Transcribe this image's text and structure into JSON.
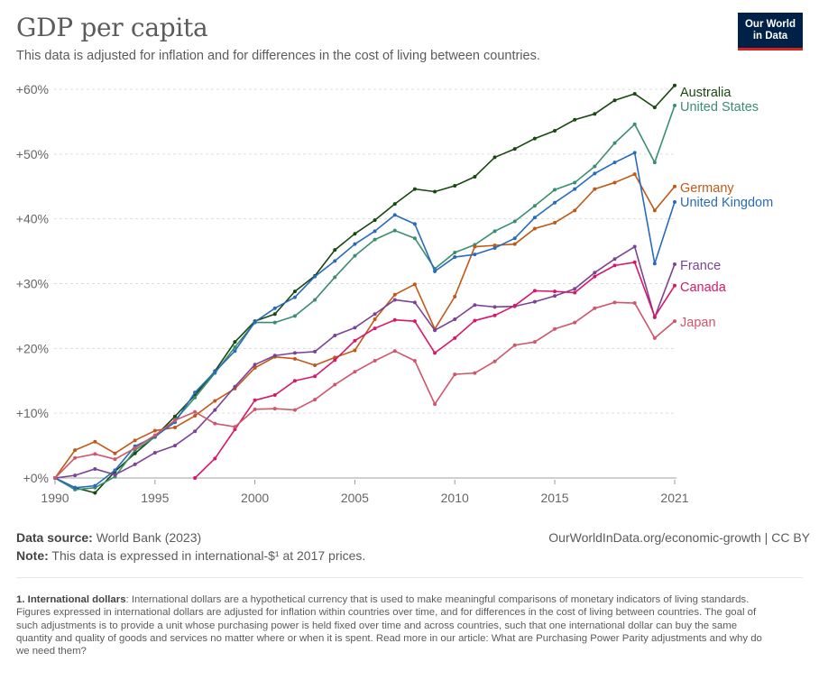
{
  "header": {
    "title": "GDP per capita",
    "subtitle": "This data is adjusted for inflation and for differences in the cost of living between countries.",
    "logo_line1": "Our World",
    "logo_line2": "in Data"
  },
  "footer": {
    "source_label": "Data source:",
    "source_value": "World Bank (2023)",
    "note_label": "Note:",
    "note_value": "This data is expressed in international-$¹ at 2017 prices.",
    "url": "OurWorldInData.org/economic-growth  | CC BY",
    "footnote_label": "1. International dollars",
    "footnote_text": ": International dollars are a hypothetical currency that is used to make meaningful comparisons of monetary indicators of living standards. Figures expressed in international dollars are adjusted for inflation within countries over time, and for differences in the cost of living between countries. The goal of such adjustments is to provide a unit whose purchasing power is held fixed over time and across countries, such that one international dollar can buy the same quantity and quality of goods and services no matter where or when it is spent. Read more in our article: What are Purchasing Power Parity adjustments and why do we need them?"
  },
  "colors": {
    "Australia": "#18470f",
    "United States": "#3a8e6e",
    "Germany": "#c05917",
    "United Kingdom": "#286bbb",
    "France": "#7c4296",
    "Canada": "#d6186b",
    "Japan": "#d0566c"
  },
  "chart_data": {
    "type": "line",
    "title": "GDP per capita",
    "xlabel": "",
    "ylabel": "",
    "xlim": [
      1990,
      2021
    ],
    "ylim": [
      -2,
      60
    ],
    "yticks": [
      0,
      10,
      20,
      30,
      40,
      50,
      60
    ],
    "ytick_labels": [
      "+0%",
      "+10%",
      "+20%",
      "+30%",
      "+40%",
      "+50%",
      "+60%"
    ],
    "xticks": [
      1990,
      1995,
      2000,
      2005,
      2010,
      2015,
      2021
    ],
    "xtick_labels": [
      "1990",
      "1995",
      "2000",
      "2005",
      "2010",
      "2015",
      "2021"
    ],
    "grid": "horizontal-dashed",
    "legend": "right-end-labels",
    "series": [
      {
        "name": "Australia",
        "start": 1990,
        "values": [
          0,
          -1.5,
          -2.3,
          1,
          3.8,
          6.4,
          9.5,
          12.8,
          16.5,
          21,
          24.2,
          25.3,
          28.8,
          31.2,
          35.2,
          37.7,
          39.8,
          42.3,
          44.6,
          44.2,
          45.1,
          46.5,
          49.5,
          50.8,
          52.4,
          53.6,
          55.3,
          56.2,
          58.3,
          59.3,
          57.2,
          60.6
        ]
      },
      {
        "name": "United States",
        "start": 1990,
        "values": [
          0,
          -1.8,
          -1.5,
          0.2,
          4.3,
          6.3,
          8.9,
          12.4,
          16.2,
          20.2,
          24,
          24,
          25,
          27.5,
          31,
          34.3,
          36.8,
          38.2,
          37,
          32.3,
          34.8,
          36,
          38.1,
          39.6,
          42,
          44.5,
          45.6,
          48.1,
          51.7,
          54.6,
          48.7,
          57.5
        ]
      },
      {
        "name": "Germany",
        "start": 1990,
        "values": [
          0,
          4.3,
          5.6,
          3.8,
          5.8,
          7.3,
          7.8,
          9.6,
          11.9,
          13.8,
          17,
          18.7,
          18.4,
          17.4,
          18.6,
          19.7,
          24.5,
          28.3,
          29.9,
          23,
          28,
          35.7,
          35.9,
          36.1,
          38.5,
          39.4,
          41.3,
          44.6,
          45.6,
          46.9,
          41.3,
          45
        ]
      },
      {
        "name": "United Kingdom",
        "start": 1990,
        "values": [
          0,
          -1.5,
          -1.2,
          1.2,
          4.9,
          6.4,
          8.6,
          13.2,
          16.4,
          19.6,
          24.1,
          26.2,
          27.9,
          31.1,
          33.5,
          36.1,
          38.1,
          40.6,
          39.2,
          31.9,
          34.1,
          34.5,
          35.5,
          37,
          40.2,
          42.5,
          44.6,
          47,
          48.7,
          50.2,
          33.1,
          42.6
        ]
      },
      {
        "name": "France",
        "start": 1990,
        "values": [
          0,
          0.4,
          1.4,
          0.5,
          2.1,
          3.9,
          5,
          7.2,
          10.5,
          14.1,
          17.5,
          18.9,
          19.3,
          19.5,
          22,
          23.2,
          25.3,
          27.5,
          27.1,
          22.8,
          24.5,
          26.7,
          26.4,
          26.5,
          27.2,
          28.1,
          29.2,
          31.7,
          33.8,
          35.7,
          24.8,
          33
        ]
      },
      {
        "name": "Canada",
        "start": 1997,
        "values": [
          0,
          3,
          7.5,
          12,
          12.8,
          15,
          15.7,
          18.2,
          21.2,
          23.1,
          24.4,
          24.2,
          19.3,
          21.6,
          24.3,
          25.1,
          26.6,
          28.9,
          28.8,
          28.6,
          31.1,
          32.8,
          33.3,
          24.9,
          29.7
        ]
      },
      {
        "name": "Japan",
        "start": 1990,
        "values": [
          0,
          3.1,
          3.7,
          2.9,
          4.6,
          6.6,
          8.9,
          10.2,
          8.4,
          7.9,
          10.6,
          10.7,
          10.5,
          12.1,
          14.4,
          16.4,
          18.1,
          19.6,
          18.1,
          11.4,
          16,
          16.2,
          18,
          20.5,
          21,
          23,
          24,
          26.2,
          27.1,
          27,
          21.6,
          24.2
        ]
      }
    ]
  }
}
